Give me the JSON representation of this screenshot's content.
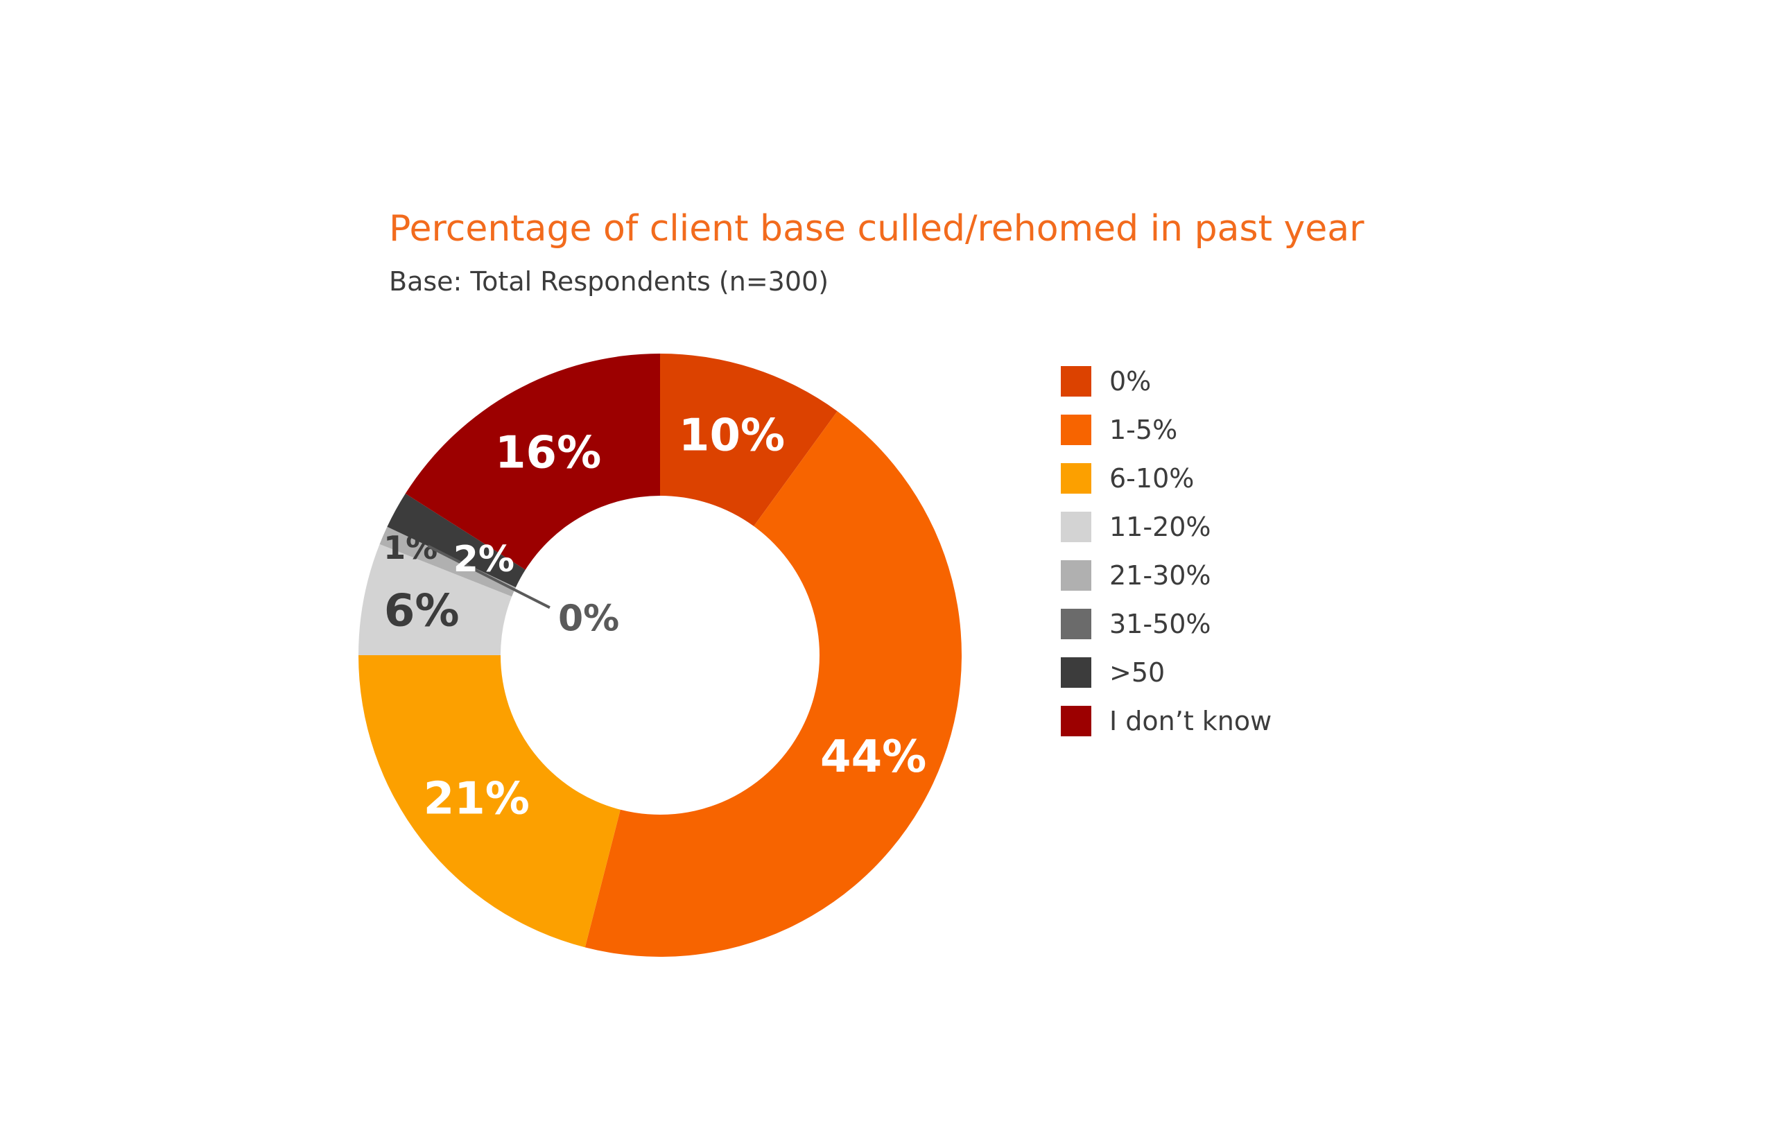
{
  "chart_data": {
    "type": "pie",
    "title": "Percentage of client base culled/rehomed in past year",
    "subtitle": "Base: Total Respondents (n=300)",
    "categories": [
      "0%",
      "1-5%",
      "6-10%",
      "11-20%",
      "21-30%",
      "31-50%",
      ">50",
      "I don’t know"
    ],
    "values": [
      10,
      44,
      21,
      6,
      1,
      0,
      2,
      16
    ],
    "data_labels": [
      "10%",
      "44%",
      "21%",
      "6%",
      "1%",
      "0%",
      "2%",
      "16%"
    ],
    "colors": [
      "#dc4200",
      "#f76400",
      "#fca000",
      "#d3d3d3",
      "#b0b0b0",
      "#6b6b6b",
      "#3c3c3c",
      "#9c0000"
    ],
    "label_colors": [
      "#ffffff",
      "#ffffff",
      "#ffffff",
      "#3c3c3c",
      "#3c3c3c",
      "#5a5a5a",
      "#ffffff",
      "#ffffff"
    ],
    "donut": true,
    "legend_position": "right",
    "grid": false
  }
}
